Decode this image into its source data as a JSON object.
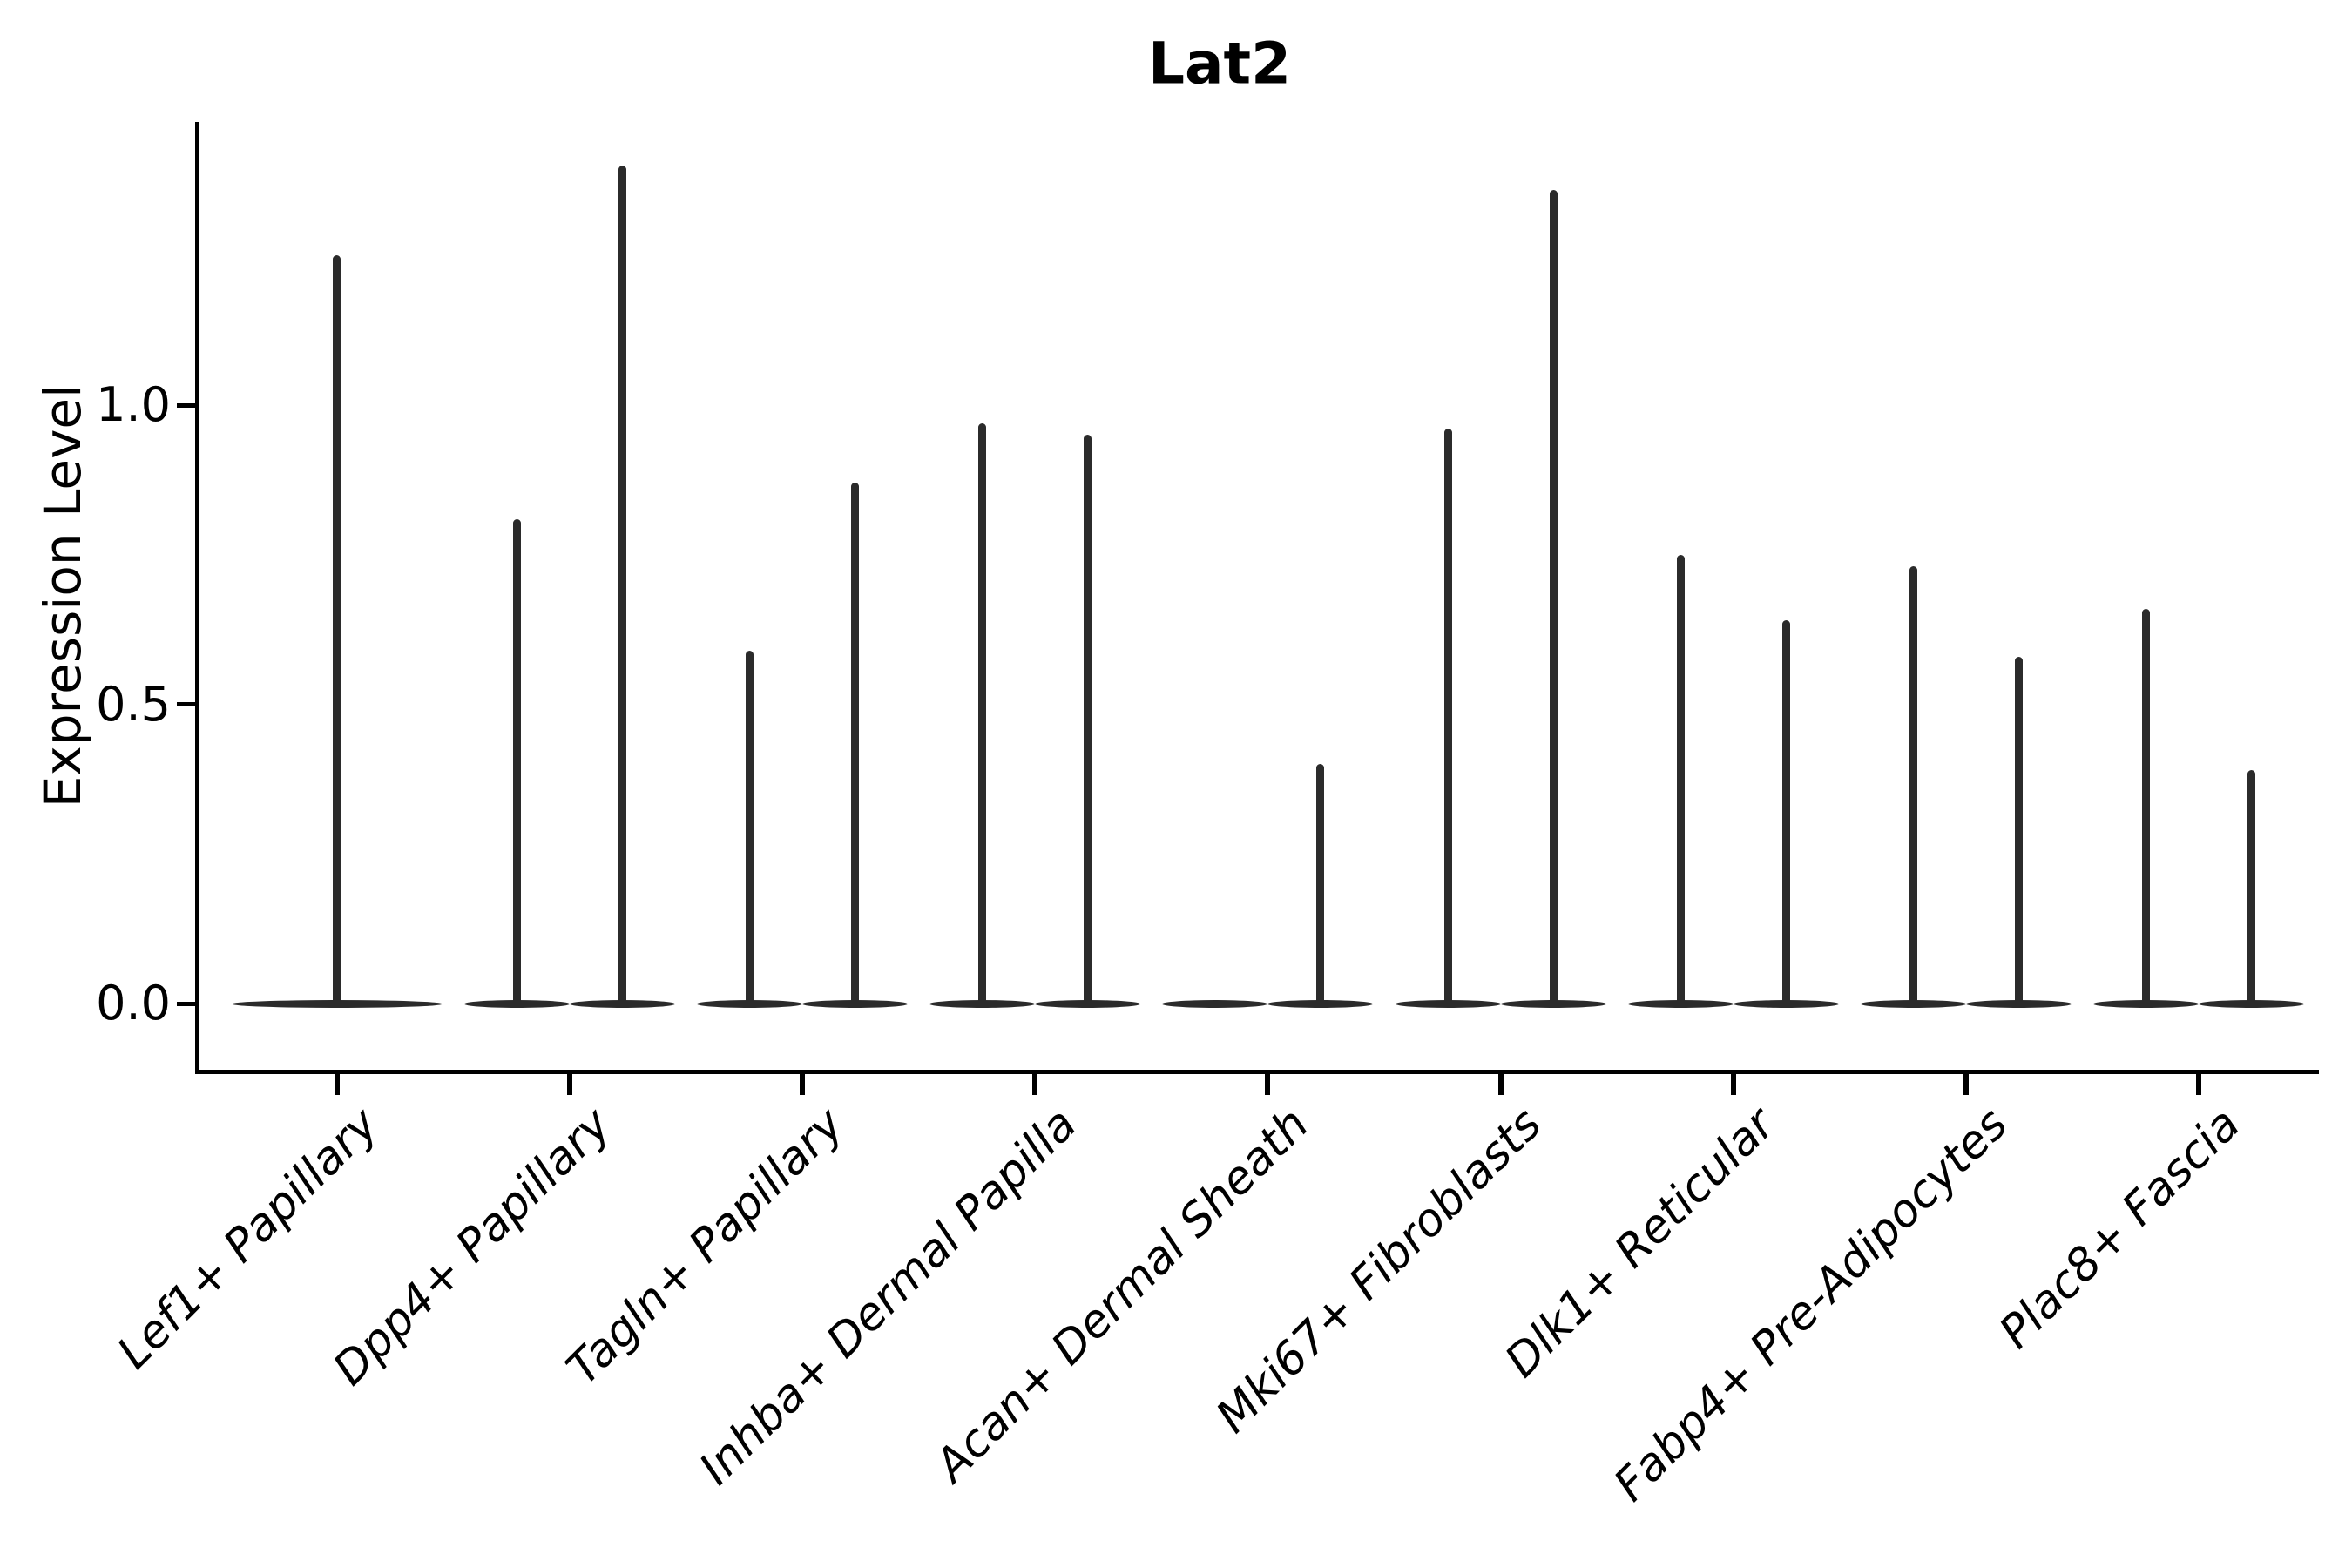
{
  "figure": {
    "title": "Lat2",
    "y_axis": {
      "label": "Expression Level"
    }
  },
  "chart_data": {
    "type": "violin",
    "title": "Lat2",
    "xlabel": "",
    "ylabel": "Expression Level",
    "ylim": [
      -0.11,
      1.47
    ],
    "grid": false,
    "legend": "none",
    "yticks": [
      {
        "value": 0.0,
        "label": "0.0"
      },
      {
        "value": 0.5,
        "label": "0.5"
      },
      {
        "value": 1.0,
        "label": "1.0"
      }
    ],
    "baseline_value": 0.0,
    "description": "Needle-shaped violins flattened at expression 0; some categories contain two side-by-side violins (split groups), each a flat base lens at 0 with a thin spike up to the peak expression value.",
    "categories": [
      {
        "label": "Lef1+ Papillary",
        "violins": [
          {
            "position": "center",
            "rel_offset": 0.0,
            "rel_width": 0.905,
            "peak": 1.25
          }
        ]
      },
      {
        "label": "Dpp4+ Papillary",
        "violins": [
          {
            "position": "left",
            "rel_offset": -0.2265,
            "rel_width": 0.4525,
            "peak": 0.81
          },
          {
            "position": "right",
            "rel_offset": 0.2265,
            "rel_width": 0.4525,
            "peak": 1.4
          }
        ]
      },
      {
        "label": "Tagln+ Papillary",
        "violins": [
          {
            "position": "left",
            "rel_offset": -0.2265,
            "rel_width": 0.4525,
            "peak": 0.59
          },
          {
            "position": "right",
            "rel_offset": 0.2265,
            "rel_width": 0.4525,
            "peak": 0.87
          }
        ]
      },
      {
        "label": "Inhba+ Dermal Papilla",
        "violins": [
          {
            "position": "left",
            "rel_offset": -0.2265,
            "rel_width": 0.4525,
            "peak": 0.97
          },
          {
            "position": "right",
            "rel_offset": 0.2265,
            "rel_width": 0.4525,
            "peak": 0.95
          }
        ]
      },
      {
        "label": "Acan+ Dermal Sheath",
        "violins": [
          {
            "position": "left",
            "rel_offset": -0.2265,
            "rel_width": 0.4525,
            "peak": 0.0
          },
          {
            "position": "right",
            "rel_offset": 0.2265,
            "rel_width": 0.4525,
            "peak": 0.4
          }
        ]
      },
      {
        "label": "Mki67+ Fibroblasts",
        "violins": [
          {
            "position": "left",
            "rel_offset": -0.2265,
            "rel_width": 0.4525,
            "peak": 0.96
          },
          {
            "position": "right",
            "rel_offset": 0.2265,
            "rel_width": 0.4525,
            "peak": 1.36
          }
        ]
      },
      {
        "label": "Dlk1+ Reticular",
        "violins": [
          {
            "position": "left",
            "rel_offset": -0.2265,
            "rel_width": 0.4525,
            "peak": 0.75
          },
          {
            "position": "right",
            "rel_offset": 0.2265,
            "rel_width": 0.4525,
            "peak": 0.64
          }
        ]
      },
      {
        "label": "Fabp4+ Pre-Adipocytes",
        "violins": [
          {
            "position": "left",
            "rel_offset": -0.2265,
            "rel_width": 0.4525,
            "peak": 0.73
          },
          {
            "position": "right",
            "rel_offset": 0.2265,
            "rel_width": 0.4525,
            "peak": 0.58
          }
        ]
      },
      {
        "label": "Plac8+ Fascia",
        "violins": [
          {
            "position": "left",
            "rel_offset": -0.2265,
            "rel_width": 0.4525,
            "peak": 0.66
          },
          {
            "position": "right",
            "rel_offset": 0.2265,
            "rel_width": 0.4525,
            "peak": 0.39
          }
        ]
      }
    ],
    "colors": {
      "violin": "#2b2b2b",
      "axis": "#000000",
      "text": "#000000",
      "background": "#ffffff"
    }
  }
}
